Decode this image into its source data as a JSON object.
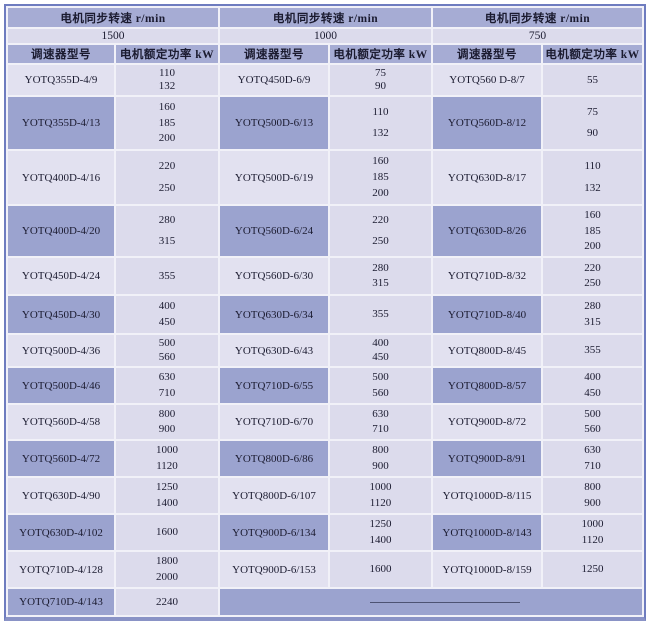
{
  "colors": {
    "outer_border": "#6e7cbf",
    "bottom_border": "#8a93c6",
    "gridline": "#f1f1f8",
    "header_dark_bg": "#a6acd4",
    "row_light_bg": "#e2e1f0",
    "row_dark_bg": "#9ba3cf",
    "power_cell_bg": "#dcdbec",
    "speed_row_bg": "#dcdbec",
    "text": "#1b1b30",
    "dash_line": "#4d5273"
  },
  "table": {
    "speed_header_label": "电机同步转速  r/min",
    "model_col_label": "调速器型号",
    "power_col_label": "电机额定功率 kW",
    "groups": [
      {
        "speed": "1500",
        "rows": [
          {
            "model": "YOTQ355D-4/9",
            "powers": [
              "110",
              "132"
            ]
          },
          {
            "model": "YOTQ355D-4/13",
            "powers": [
              "160",
              "185",
              "200"
            ]
          },
          {
            "model": "YOTQ400D-4/16",
            "powers": [
              "220",
              "250"
            ]
          },
          {
            "model": "YOTQ400D-4/20",
            "powers": [
              "280",
              "315"
            ]
          },
          {
            "model": "YOTQ450D-4/24",
            "powers": [
              "355"
            ]
          },
          {
            "model": "YOTQ450D-4/30",
            "powers": [
              "400",
              "450"
            ]
          },
          {
            "model": "YOTQ500D-4/36",
            "powers": [
              "500",
              "560"
            ]
          },
          {
            "model": "YOTQ500D-4/46",
            "powers": [
              "630",
              "710"
            ]
          },
          {
            "model": "YOTQ560D-4/58",
            "powers": [
              "800",
              "900"
            ]
          },
          {
            "model": "YOTQ560D-4/72",
            "powers": [
              "1000",
              "1120"
            ]
          },
          {
            "model": "YOTQ630D-4/90",
            "powers": [
              "1250",
              "1400"
            ]
          },
          {
            "model": "YOTQ630D-4/102",
            "powers": [
              "1600"
            ]
          },
          {
            "model": "YOTQ710D-4/128",
            "powers": [
              "1800",
              "2000"
            ]
          },
          {
            "model": "YOTQ710D-4/143",
            "powers": [
              "2240"
            ]
          }
        ]
      },
      {
        "speed": "1000",
        "rows": [
          {
            "model": "YOTQ450D-6/9",
            "powers": [
              "75",
              "90"
            ]
          },
          {
            "model": "YOTQ500D-6/13",
            "powers": [
              "110",
              "132"
            ]
          },
          {
            "model": "YOTQ500D-6/19",
            "powers": [
              "160",
              "185",
              "200"
            ]
          },
          {
            "model": "YOTQ560D-6/24",
            "powers": [
              "220",
              "250"
            ]
          },
          {
            "model": "YOTQ560D-6/30",
            "powers": [
              "280",
              "315"
            ]
          },
          {
            "model": "YOTQ630D-6/34",
            "powers": [
              "355"
            ]
          },
          {
            "model": "YOTQ630D-6/43",
            "powers": [
              "400",
              "450"
            ]
          },
          {
            "model": "YOTQ710D-6/55",
            "powers": [
              "500",
              "560"
            ]
          },
          {
            "model": "YOTQ710D-6/70",
            "powers": [
              "630",
              "710"
            ]
          },
          {
            "model": "YOTQ800D-6/86",
            "powers": [
              "800",
              "900"
            ]
          },
          {
            "model": "YOTQ800D-6/107",
            "powers": [
              "1000",
              "1120"
            ]
          },
          {
            "model": "YOTQ900D-6/134",
            "powers": [
              "1250",
              "1400"
            ]
          },
          {
            "model": "YOTQ900D-6/153",
            "powers": [
              "1600"
            ]
          }
        ]
      },
      {
        "speed": "750",
        "rows": [
          {
            "model": "YOTQ560 D-8/7",
            "powers": [
              "55"
            ]
          },
          {
            "model": "YOTQ560D-8/12",
            "powers": [
              "75",
              "90"
            ]
          },
          {
            "model": "YOTQ630D-8/17",
            "powers": [
              "110",
              "132"
            ]
          },
          {
            "model": "YOTQ630D-8/26",
            "powers": [
              "160",
              "185",
              "200"
            ]
          },
          {
            "model": "YOTQ710D-8/32",
            "powers": [
              "220",
              "250"
            ]
          },
          {
            "model": "YOTQ710D-8/40",
            "powers": [
              "280",
              "315"
            ]
          },
          {
            "model": "YOTQ800D-8/45",
            "powers": [
              "355"
            ]
          },
          {
            "model": "YOTQ800D-8/57",
            "powers": [
              "400",
              "450"
            ]
          },
          {
            "model": "YOTQ900D-8/72",
            "powers": [
              "500",
              "560"
            ]
          },
          {
            "model": "YOTQ900D-8/91",
            "powers": [
              "630",
              "710"
            ]
          },
          {
            "model": "YOTQ1000D-8/115",
            "powers": [
              "800",
              "900"
            ]
          },
          {
            "model": "YOTQ1000D-8/143",
            "powers": [
              "1000",
              "1120"
            ]
          },
          {
            "model": "YOTQ1000D-8/159",
            "powers": [
              "1250"
            ]
          }
        ]
      }
    ]
  }
}
